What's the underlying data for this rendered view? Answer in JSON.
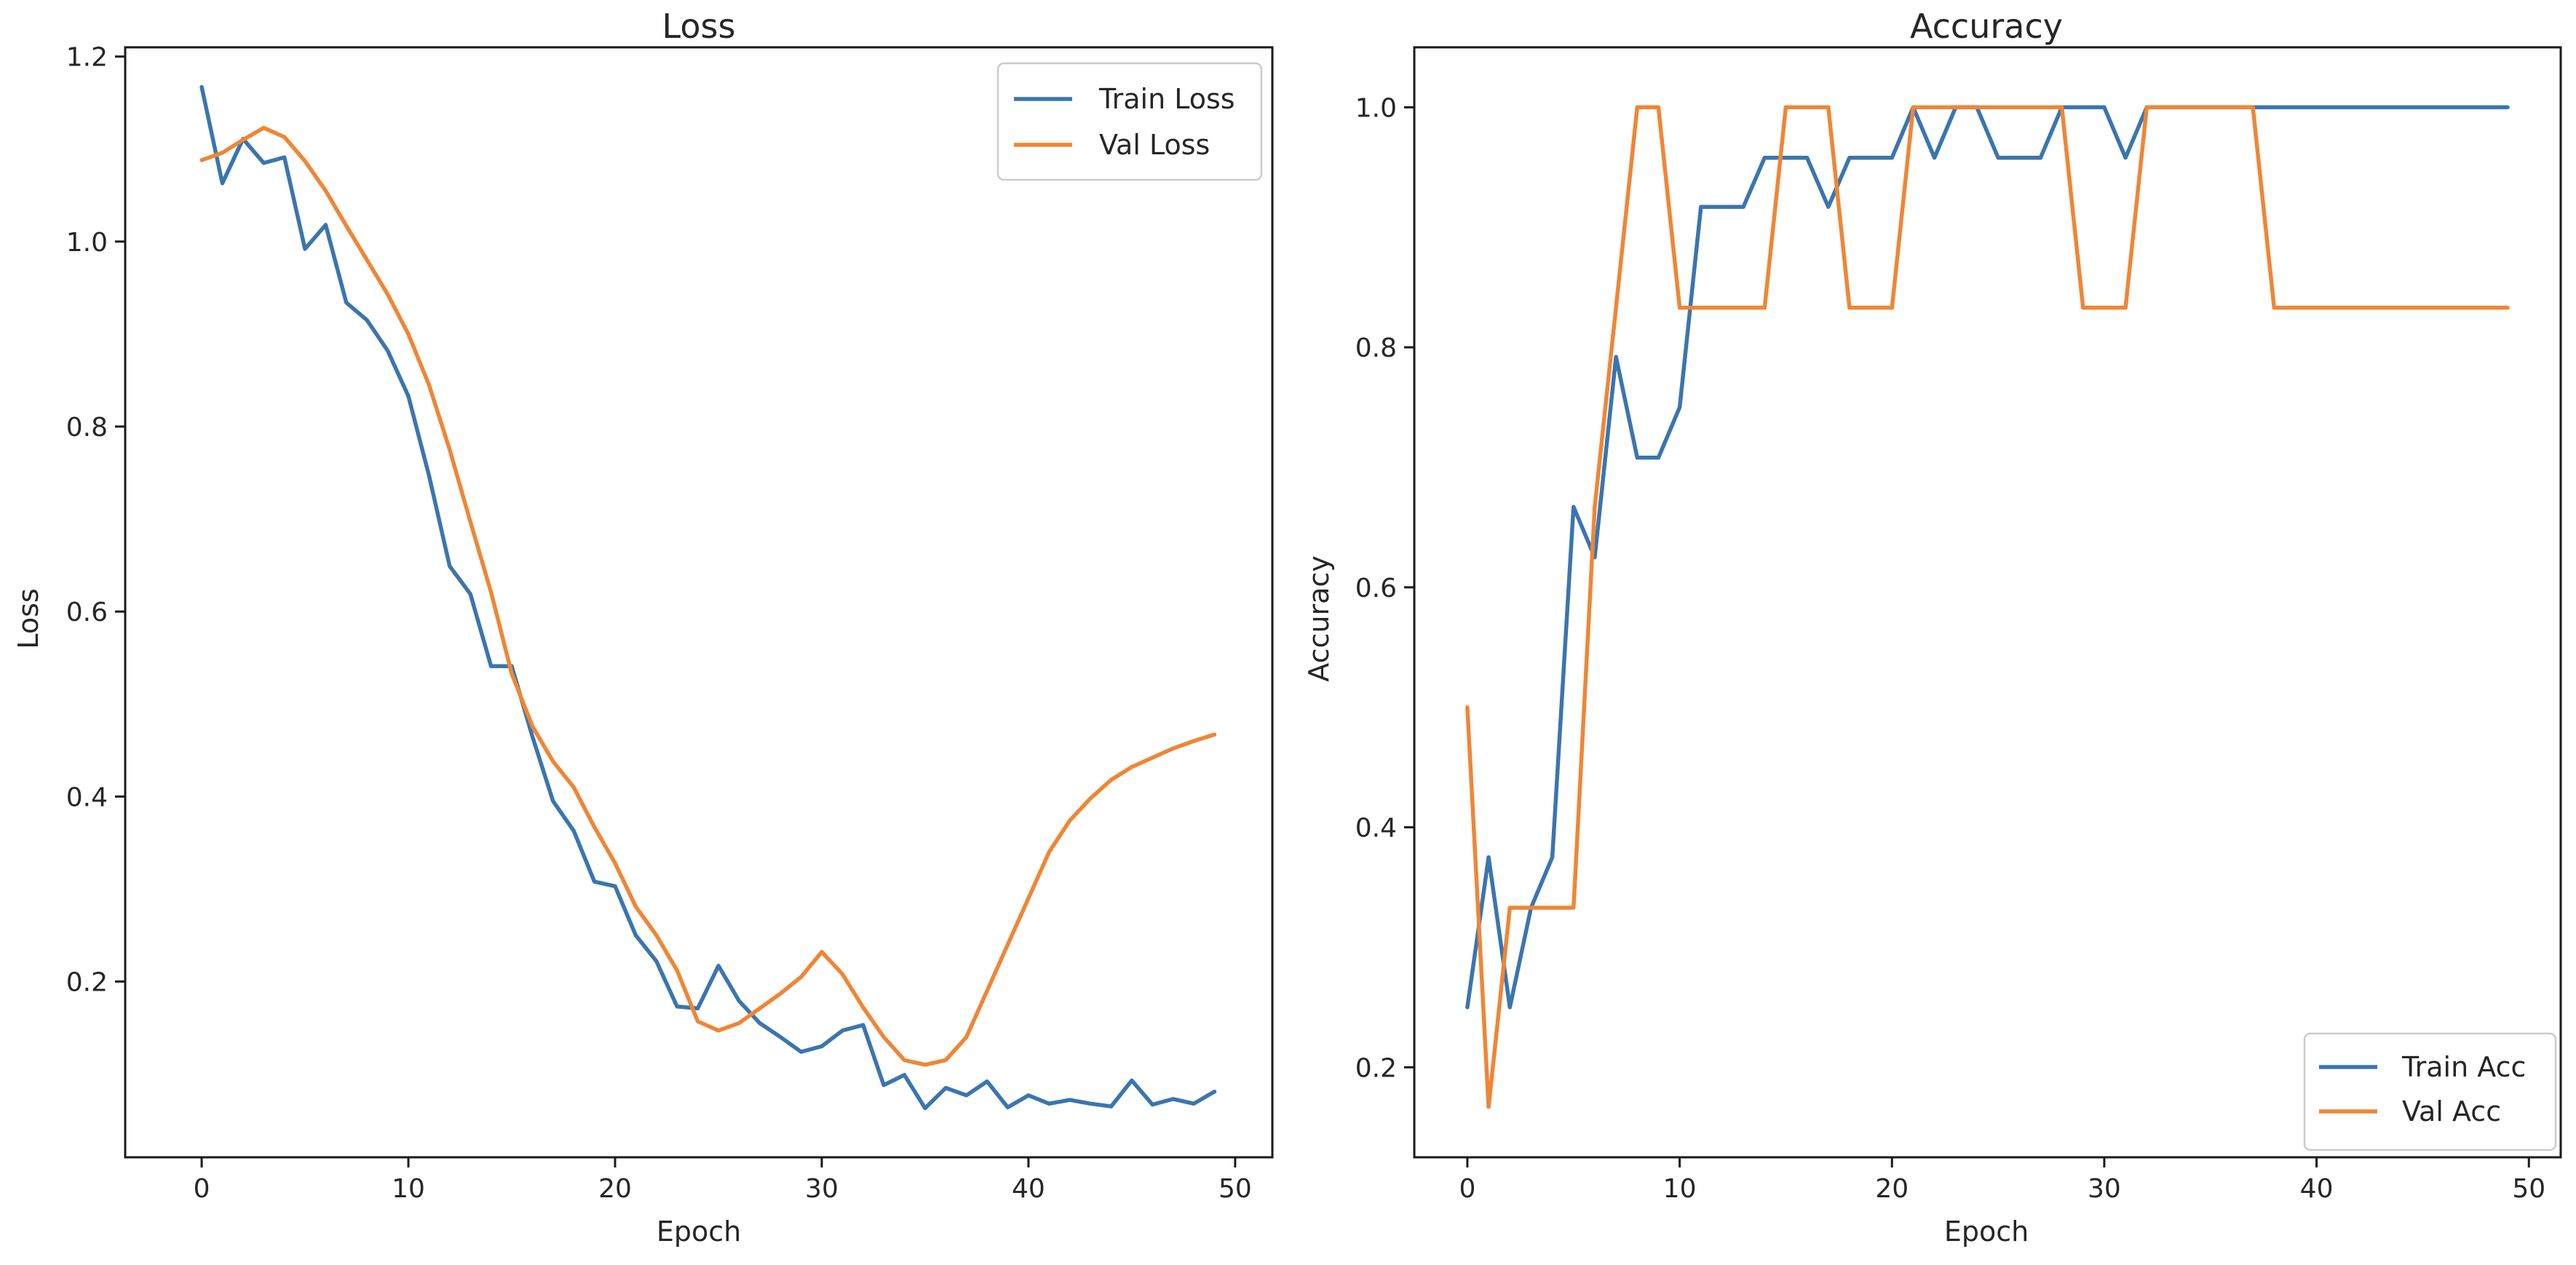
{
  "chart_data": [
    {
      "type": "line",
      "title": "Loss",
      "xlabel": "Epoch",
      "ylabel": "Loss",
      "xlim": [
        -3.7,
        51.8
      ],
      "ylim": [
        0.01,
        1.21
      ],
      "xticks": [
        0,
        10,
        20,
        30,
        40,
        50
      ],
      "yticks": [
        0.2,
        0.4,
        0.6,
        0.8,
        1.0,
        1.2
      ],
      "ytick_labels": [
        "0.2",
        "0.4",
        "0.6",
        "0.8",
        "1.0",
        "1.2"
      ],
      "grid": false,
      "legend": "top-right",
      "x": [
        0,
        1,
        2,
        3,
        4,
        5,
        6,
        7,
        8,
        9,
        10,
        11,
        12,
        13,
        14,
        15,
        16,
        17,
        18,
        19,
        20,
        21,
        22,
        23,
        24,
        25,
        26,
        27,
        28,
        29,
        30,
        31,
        32,
        33,
        34,
        35,
        36,
        37,
        38,
        39,
        40,
        41,
        42,
        43,
        44,
        45,
        46,
        47,
        48,
        49
      ],
      "series": [
        {
          "name": "Train Loss",
          "color": "#3b75af",
          "values": [
            1.167,
            1.063,
            1.111,
            1.085,
            1.091,
            0.992,
            1.018,
            0.934,
            0.915,
            0.882,
            0.833,
            0.747,
            0.649,
            0.619,
            0.541,
            0.541,
            0.465,
            0.395,
            0.363,
            0.308,
            0.303,
            0.25,
            0.222,
            0.173,
            0.171,
            0.217,
            0.179,
            0.155,
            0.14,
            0.124,
            0.13,
            0.147,
            0.153,
            0.088,
            0.099,
            0.063,
            0.085,
            0.077,
            0.092,
            0.064,
            0.077,
            0.068,
            0.072,
            0.068,
            0.065,
            0.093,
            0.067,
            0.073,
            0.068,
            0.081
          ]
        },
        {
          "name": "Val Loss",
          "color": "#ef8636",
          "values": [
            1.088,
            1.096,
            1.11,
            1.123,
            1.113,
            1.087,
            1.055,
            1.017,
            0.98,
            0.943,
            0.9,
            0.845,
            0.775,
            0.697,
            0.621,
            0.533,
            0.476,
            0.438,
            0.41,
            0.367,
            0.328,
            0.281,
            0.25,
            0.212,
            0.157,
            0.147,
            0.155,
            0.171,
            0.187,
            0.205,
            0.232,
            0.208,
            0.172,
            0.14,
            0.115,
            0.11,
            0.115,
            0.14,
            0.19,
            0.24,
            0.29,
            0.34,
            0.374,
            0.398,
            0.418,
            0.432,
            0.442,
            0.452,
            0.46,
            0.467
          ]
        }
      ]
    },
    {
      "type": "line",
      "title": "Accuracy",
      "xlabel": "Epoch",
      "ylabel": "Accuracy",
      "xlim": [
        -2.5,
        51.5
      ],
      "ylim": [
        0.125,
        1.05
      ],
      "xticks": [
        0,
        10,
        20,
        30,
        40,
        50
      ],
      "yticks": [
        0.2,
        0.4,
        0.6,
        0.8,
        1.0
      ],
      "ytick_labels": [
        "0.2",
        "0.4",
        "0.6",
        "0.8",
        "1.0"
      ],
      "grid": false,
      "legend": "bottom-right",
      "x": [
        0,
        1,
        2,
        3,
        4,
        5,
        6,
        7,
        8,
        9,
        10,
        11,
        12,
        13,
        14,
        15,
        16,
        17,
        18,
        19,
        20,
        21,
        22,
        23,
        24,
        25,
        26,
        27,
        28,
        29,
        30,
        31,
        32,
        33,
        34,
        35,
        36,
        37,
        38,
        39,
        40,
        41,
        42,
        43,
        44,
        45,
        46,
        47,
        48,
        49
      ],
      "series": [
        {
          "name": "Train Acc",
          "color": "#3b75af",
          "values": [
            0.25,
            0.375,
            0.25,
            0.333,
            0.375,
            0.667,
            0.625,
            0.792,
            0.708,
            0.708,
            0.75,
            0.917,
            0.917,
            0.917,
            0.958,
            0.958,
            0.958,
            0.917,
            0.958,
            0.958,
            0.958,
            1.0,
            0.958,
            1.0,
            1.0,
            0.958,
            0.958,
            0.958,
            1.0,
            1.0,
            1.0,
            0.958,
            1.0,
            1.0,
            1.0,
            1.0,
            1.0,
            1.0,
            1.0,
            1.0,
            1.0,
            1.0,
            1.0,
            1.0,
            1.0,
            1.0,
            1.0,
            1.0,
            1.0,
            1.0
          ]
        },
        {
          "name": "Val Acc",
          "color": "#ef8636",
          "values": [
            0.5,
            0.167,
            0.333,
            0.333,
            0.333,
            0.333,
            0.667,
            0.833,
            1.0,
            1.0,
            0.833,
            0.833,
            0.833,
            0.833,
            0.833,
            1.0,
            1.0,
            1.0,
            0.833,
            0.833,
            0.833,
            1.0,
            1.0,
            1.0,
            1.0,
            1.0,
            1.0,
            1.0,
            1.0,
            0.833,
            0.833,
            0.833,
            1.0,
            1.0,
            1.0,
            1.0,
            1.0,
            1.0,
            0.833,
            0.833,
            0.833,
            0.833,
            0.833,
            0.833,
            0.833,
            0.833,
            0.833,
            0.833,
            0.833,
            0.833
          ]
        }
      ]
    }
  ]
}
